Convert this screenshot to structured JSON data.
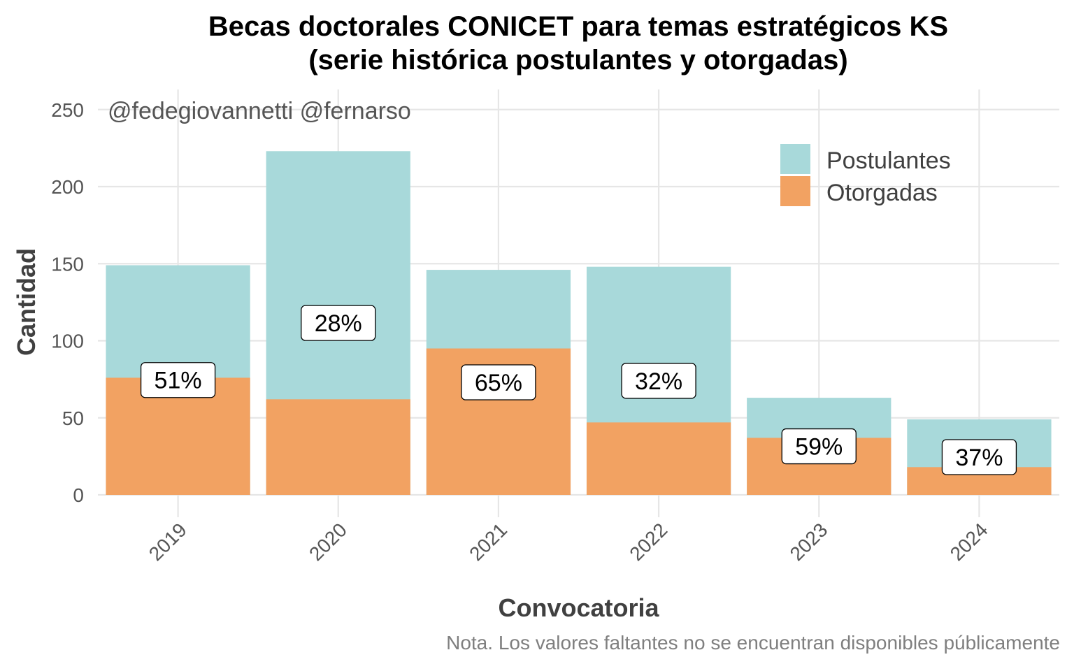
{
  "chart_data": {
    "type": "bar",
    "stacked": "overlay",
    "title_line1": "Becas doctorales CONICET para temas estratégicos KS",
    "title_line2": "(serie histórica postulantes y otorgadas)",
    "xlabel": "Convocatoria",
    "ylabel": "Cantidad",
    "ylim": [
      0,
      260
    ],
    "yticks": [
      0,
      50,
      100,
      150,
      200,
      250
    ],
    "grid": true,
    "legend_position": "top-right",
    "categories": [
      "2019",
      "2020",
      "2021",
      "2022",
      "2023",
      "2024"
    ],
    "series": [
      {
        "name": "Postulantes",
        "color": "#a8d9da",
        "values": [
          149,
          223,
          146,
          148,
          63,
          49
        ]
      },
      {
        "name": "Otorgadas",
        "color": "#f2a262",
        "values": [
          76,
          62,
          95,
          47,
          37,
          18
        ]
      }
    ],
    "data_labels": [
      "51%",
      "28%",
      "65%",
      "32%",
      "59%",
      "37%"
    ],
    "annotation": "@fedegiovannetti @fernarso",
    "caption": "Nota. Los valores faltantes no se encuentran disponibles públicamente"
  }
}
